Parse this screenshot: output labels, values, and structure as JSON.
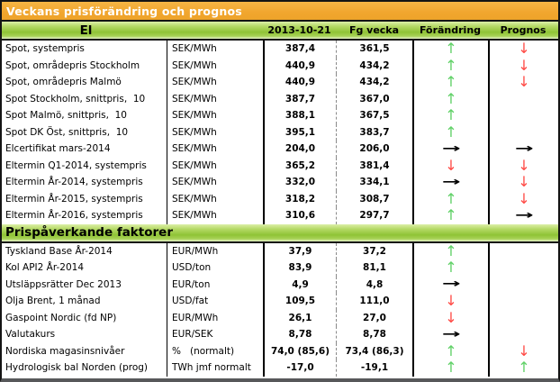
{
  "title": "Veckans prisförändring och prognos",
  "columns": {
    "date": "2013-10-21",
    "prev_week": "Fg vecka",
    "change": "Förändring",
    "forecast": "Prognos"
  },
  "icons": {
    "up": "↑",
    "down": "↓",
    "right": "→"
  },
  "colors": {
    "title_bar_orange": "#F1A62E",
    "section_header_green": "#8FC336",
    "arrow_up_green": "#5FD066",
    "arrow_down_red": "#FF4A45",
    "arrow_right_black": "#000000"
  },
  "sections": [
    {
      "label": "El",
      "rows": [
        {
          "name": "Spot, systempris",
          "unit": "SEK/MWh",
          "value": "387,4",
          "prev": "361,5",
          "change": "up",
          "forecast": "down"
        },
        {
          "name": "Spot, områdepris Stockholm",
          "unit": "SEK/MWh",
          "value": "440,9",
          "prev": "434,2",
          "change": "up",
          "forecast": "down"
        },
        {
          "name": "Spot, områdepris Malmö",
          "unit": "SEK/MWh",
          "value": "440,9",
          "prev": "434,2",
          "change": "up",
          "forecast": "down"
        },
        {
          "name": "Spot Stockholm, snittpris,  10",
          "unit": "SEK/MWh",
          "value": "387,7",
          "prev": "367,0",
          "change": "up",
          "forecast": "none"
        },
        {
          "name": "Spot Malmö, snittpris,  10",
          "unit": "SEK/MWh",
          "value": "388,1",
          "prev": "367,5",
          "change": "up",
          "forecast": "none"
        },
        {
          "name": "Spot DK Öst, snittpris,  10",
          "unit": "SEK/MWh",
          "value": "395,1",
          "prev": "383,7",
          "change": "up",
          "forecast": "none"
        },
        {
          "name": "Elcertifikat mars-2014",
          "unit": "SEK/MWh",
          "value": "204,0",
          "prev": "206,0",
          "change": "right",
          "forecast": "right"
        },
        {
          "name": "Eltermin Q1-2014, systempris",
          "unit": "SEK/MWh",
          "value": "365,2",
          "prev": "381,4",
          "change": "down",
          "forecast": "down"
        },
        {
          "name": "Eltermin År-2014, systempris",
          "unit": "SEK/MWh",
          "value": "332,0",
          "prev": "334,1",
          "change": "right",
          "forecast": "down"
        },
        {
          "name": "Eltermin År-2015, systempris",
          "unit": "SEK/MWh",
          "value": "318,2",
          "prev": "308,7",
          "change": "up",
          "forecast": "down"
        },
        {
          "name": "Eltermin År-2016, systempris",
          "unit": "SEK/MWh",
          "value": "310,6",
          "prev": "297,7",
          "change": "up",
          "forecast": "right"
        }
      ]
    },
    {
      "label": "Prispåverkande faktorer",
      "rows": [
        {
          "name": "Tyskland Base År-2014",
          "unit": "EUR/MWh",
          "value": "37,9",
          "prev": "37,2",
          "change": "up",
          "forecast": "none"
        },
        {
          "name": "Kol API2 År-2014",
          "unit": "USD/ton",
          "value": "83,9",
          "prev": "81,1",
          "change": "up",
          "forecast": "none"
        },
        {
          "name": "Utsläppsrätter Dec 2013",
          "unit": "EUR/ton",
          "value": "4,9",
          "prev": "4,8",
          "change": "right",
          "forecast": "none"
        },
        {
          "name": "Olja Brent, 1 månad",
          "unit": "USD/fat",
          "value": "109,5",
          "prev": "111,0",
          "change": "down",
          "forecast": "none"
        },
        {
          "name": "Gaspoint Nordic (fd NP)",
          "unit": "EUR/MWh",
          "value": "26,1",
          "prev": "27,0",
          "change": "down",
          "forecast": "none"
        },
        {
          "name": "Valutakurs",
          "unit": "EUR/SEK",
          "value": "8,78",
          "prev": "8,78",
          "change": "right",
          "forecast": "none"
        },
        {
          "name": "Nordiska magasinsnivåer",
          "unit": "%   (normalt)",
          "value": "74,0 (85,6)",
          "prev": "73,4 (86,3)",
          "change": "up",
          "forecast": "down"
        },
        {
          "name": "Hydrologisk bal Norden (prog)",
          "unit": "TWh jmf normalt",
          "value": "-17,0",
          "prev": "-19,1",
          "change": "up",
          "forecast": "up"
        }
      ]
    }
  ]
}
